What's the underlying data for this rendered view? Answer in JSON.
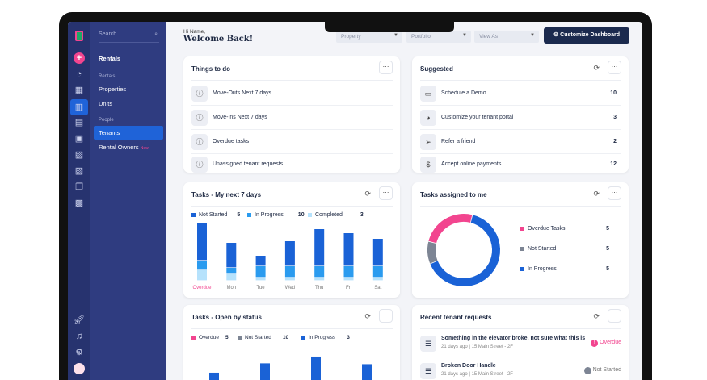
{
  "colors": {
    "not_started": "#1a62d6",
    "in_progress": "#2a9bef",
    "completed": "#b6e2fc",
    "overdue": "#f2458f",
    "gray": "#7d8594",
    "navy": "#1b2a4e"
  },
  "sidebar": {
    "search_placeholder": "Search...",
    "heading": "Rentals",
    "section_rentals": "Rentals",
    "properties": "Properties",
    "units": "Units",
    "section_people": "People",
    "tenants": "Tenants",
    "rental_owners": "Rental Owners",
    "new_badge": "New"
  },
  "header": {
    "greeting": "Hi Name,",
    "welcome": "Welcome Back!",
    "property": "Property",
    "portfolio": "Portfolio",
    "view_as": "View As",
    "customize": "Customize Dashboard"
  },
  "things": {
    "title": "Things to do",
    "items": [
      "Move-Outs Next 7 days",
      "Move-Ins Next 7 days",
      "Overdue tasks",
      "Unassigned tenant requests"
    ]
  },
  "suggested": {
    "title": "Suggested",
    "items": [
      {
        "label": "Schedule a Demo",
        "count": "10"
      },
      {
        "label": "Customize your tenant portal",
        "count": "3"
      },
      {
        "label": "Refer a friend",
        "count": "2"
      },
      {
        "label": "Accept online payments",
        "count": "12"
      }
    ]
  },
  "week": {
    "title": "Tasks - My next 7 days",
    "legend": [
      {
        "label": "Not Started",
        "count": "5"
      },
      {
        "label": "In Progress",
        "count": "10"
      },
      {
        "label": "Completed",
        "count": "3"
      }
    ]
  },
  "assigned": {
    "title": "Tasks assigned to me",
    "legend": [
      {
        "label": "Overdue Tasks",
        "count": "5"
      },
      {
        "label": "Not Started",
        "count": "5"
      },
      {
        "label": "In Progress",
        "count": "5"
      }
    ]
  },
  "status": {
    "title": "Tasks - Open by status",
    "legend": [
      {
        "label": "Overdue",
        "count": "5"
      },
      {
        "label": "Not Started",
        "count": "10"
      },
      {
        "label": "In Progress",
        "count": "3"
      }
    ]
  },
  "requests": {
    "title": "Recent tenant requests",
    "items": [
      {
        "title": "Something in the elevator broke, not sure what this is",
        "sub": "21 days ago | 15 Main Street - 2F",
        "status": "Overdue"
      },
      {
        "title": "Broken Door Handle",
        "sub": "21 days ago | 15 Main Street - 2F",
        "status": "Not Started"
      }
    ]
  },
  "chart_data": [
    {
      "type": "bar",
      "stacked": true,
      "categories": [
        "Overdue",
        "Mon",
        "Tue",
        "Wed",
        "Thu",
        "Fri",
        "Sat"
      ],
      "series": [
        {
          "name": "Not Started",
          "values": [
            9.4,
            6.2,
            2.6,
            6.2,
            9.2,
            8.2,
            6.8
          ]
        },
        {
          "name": "In Progress",
          "values": [
            2.4,
            1.4,
            2.8,
            2.8,
            2.8,
            2.8,
            2.8
          ]
        },
        {
          "name": "Completed",
          "values": [
            2.6,
            1.8,
            0.8,
            0.8,
            0.8,
            0.8,
            0.8
          ]
        }
      ]
    },
    {
      "type": "pie",
      "donut": true,
      "slices": [
        {
          "name": "In Progress",
          "share": 0.65
        },
        {
          "name": "Not Started",
          "share": 0.1
        },
        {
          "name": "Overdue Tasks",
          "share": 0.25
        }
      ]
    },
    {
      "type": "bar",
      "values": [
        4,
        6.2,
        7.8,
        6
      ]
    }
  ]
}
